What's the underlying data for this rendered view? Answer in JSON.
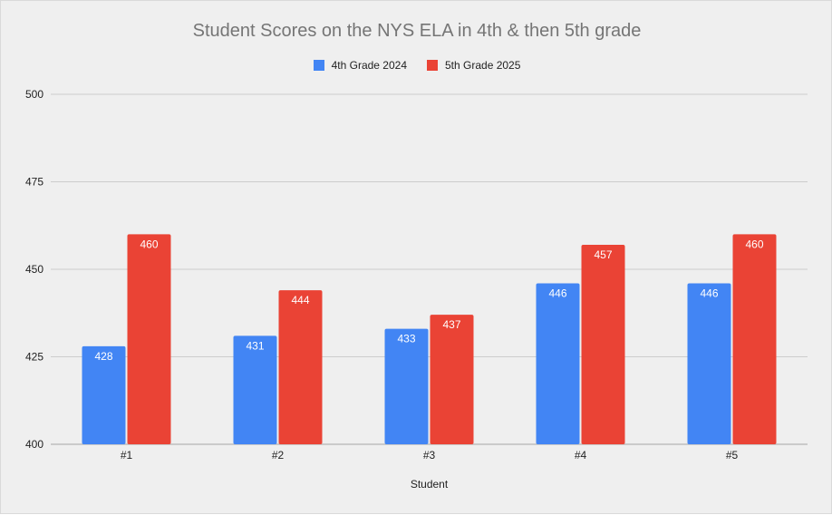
{
  "chart_data": {
    "type": "bar",
    "title": "Student Scores on the NYS ELA in 4th & then 5th grade",
    "xlabel": "Student",
    "ylabel": "",
    "categories": [
      "#1",
      "#2",
      "#3",
      "#4",
      "#5"
    ],
    "series": [
      {
        "name": "4th Grade 2024",
        "color": "#4285f4",
        "values": [
          428,
          431,
          433,
          446,
          446
        ]
      },
      {
        "name": "5th Grade 2025",
        "color": "#ea4335",
        "values": [
          460,
          444,
          437,
          457,
          460
        ]
      }
    ],
    "ylim": [
      400,
      500
    ],
    "yticks": [
      400,
      425,
      450,
      475,
      500
    ],
    "grid": true,
    "legend_position": "top",
    "data_labels": true
  }
}
